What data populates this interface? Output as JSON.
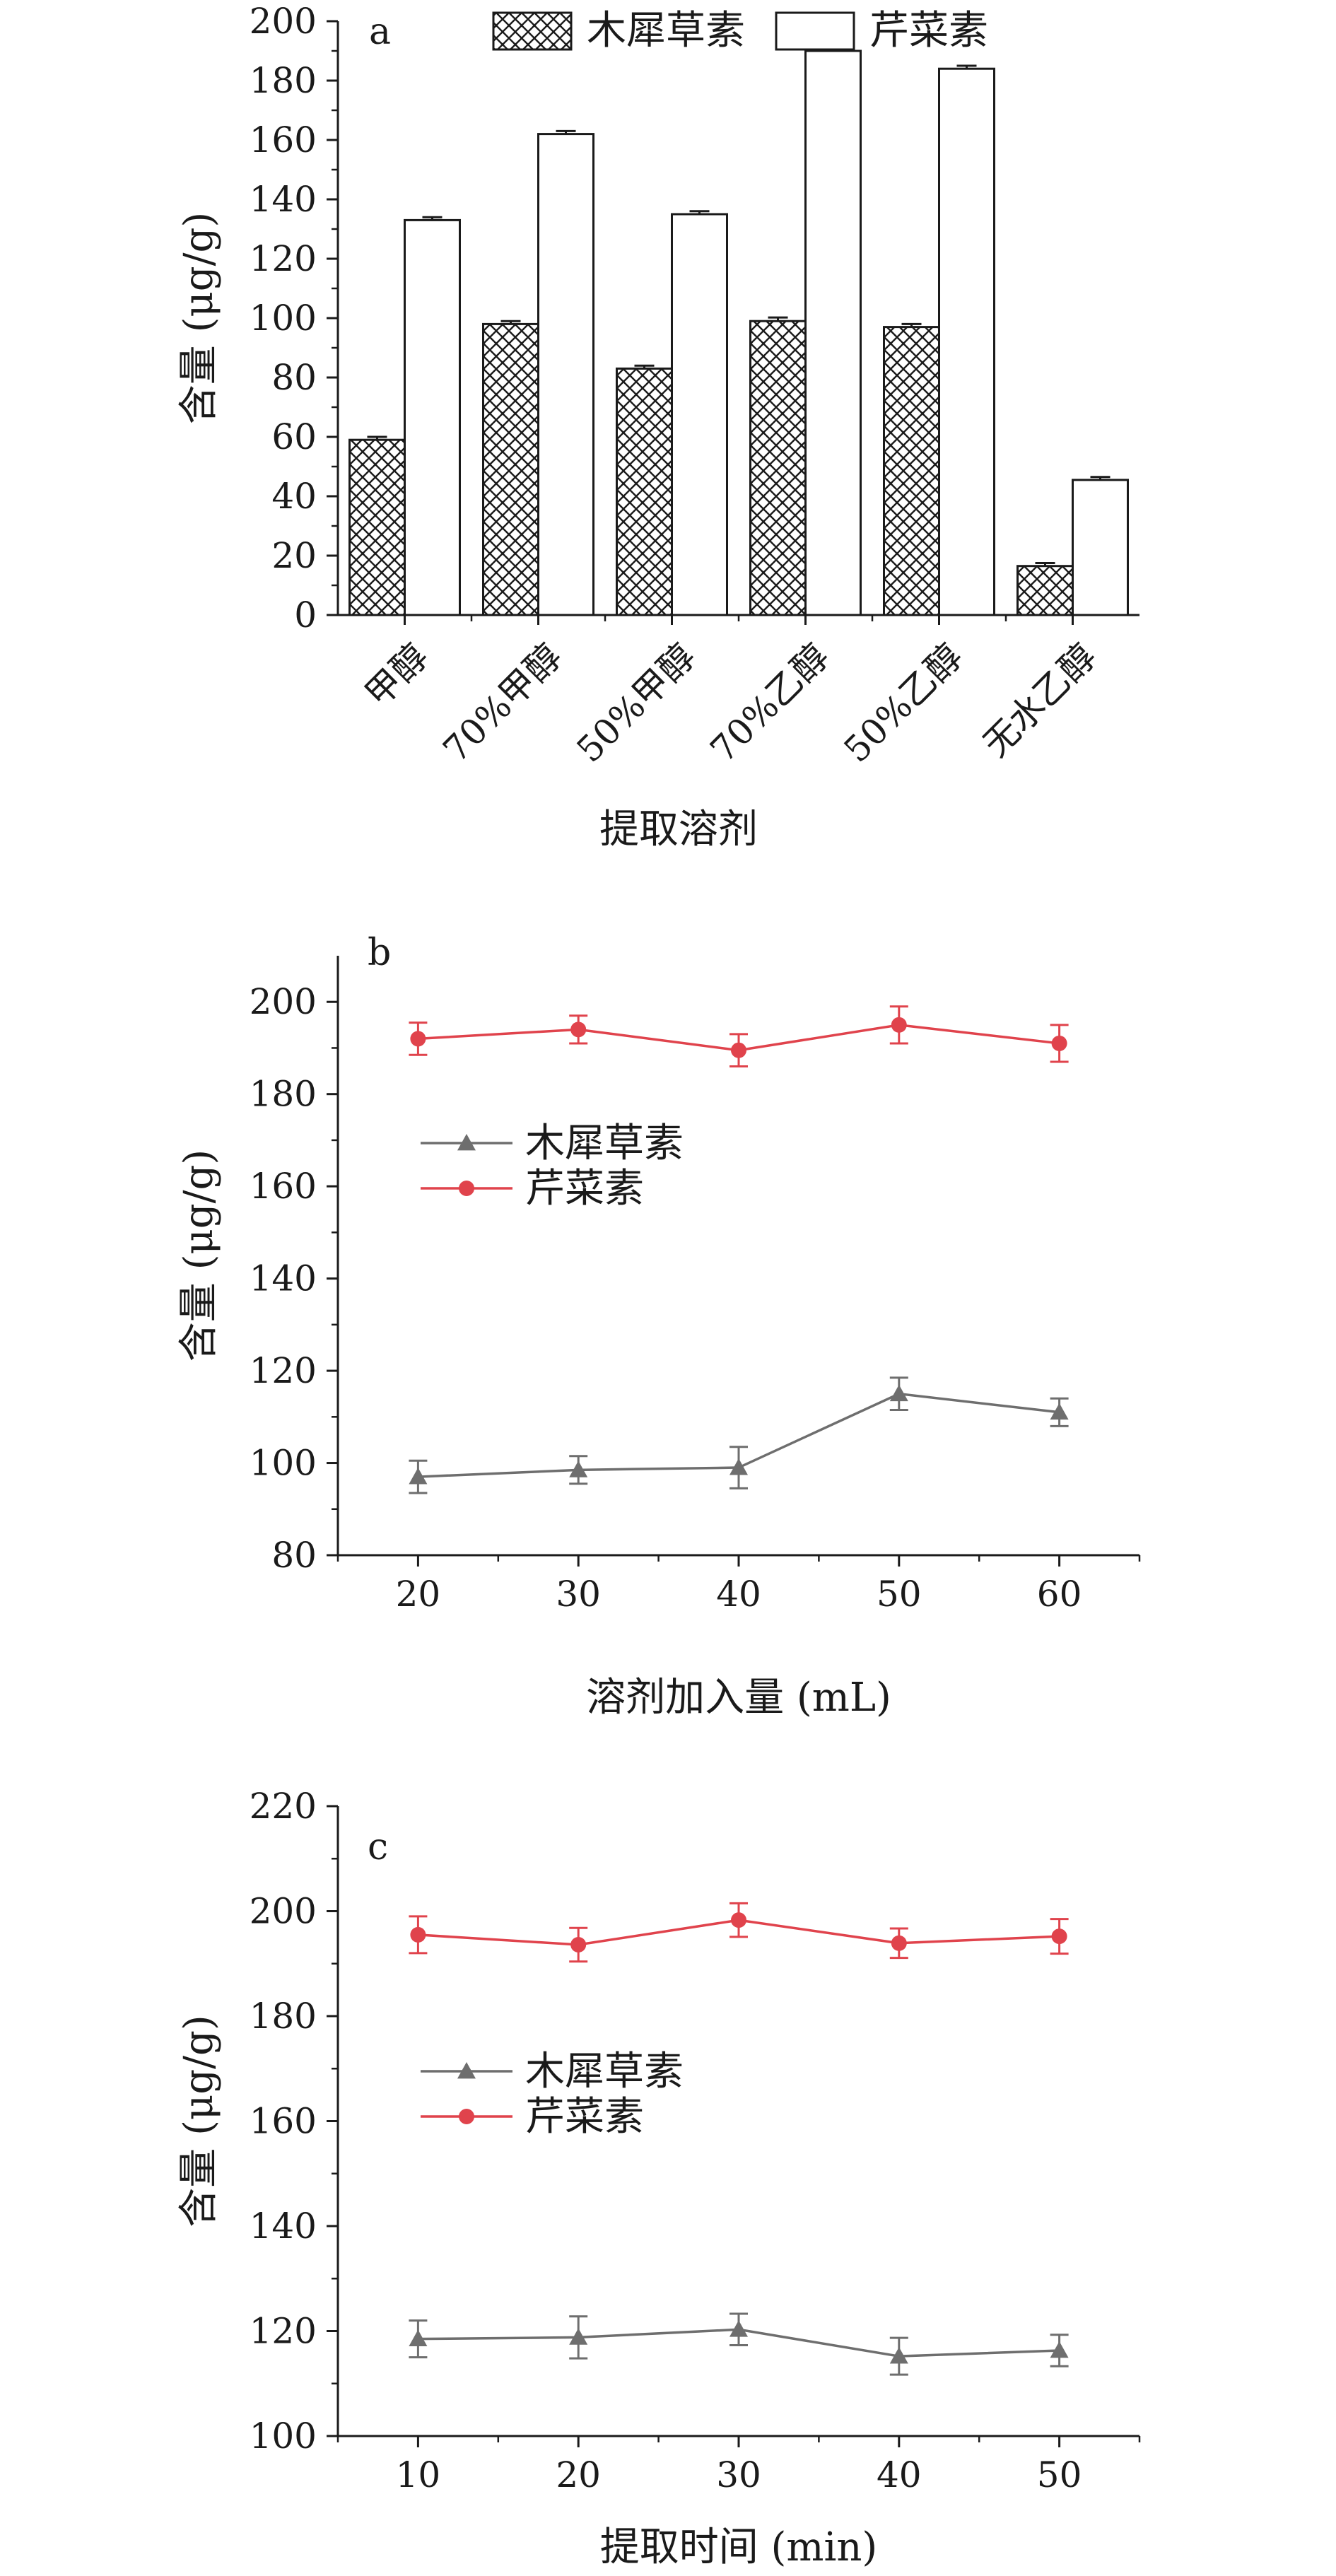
{
  "chart_data": [
    {
      "panel": "a",
      "type": "bar",
      "xlabel": "提取溶剂",
      "ylabel": "含量 (μg/g)",
      "ylim": [
        0,
        200
      ],
      "yticks": [
        0,
        20,
        40,
        60,
        80,
        100,
        120,
        140,
        160,
        180,
        200
      ],
      "categories": [
        "甲醇",
        "70%甲醇",
        "50%甲醇",
        "70%乙醇",
        "50%乙醇",
        "无水乙醇"
      ],
      "legend_placement": "top",
      "series": [
        {
          "name": "木犀草素",
          "pattern": "crosshatch",
          "color": "#1a1a1a",
          "values": [
            59,
            98,
            83,
            99,
            97,
            16.5
          ],
          "errors": [
            1,
            1,
            1,
            1.2,
            1,
            1
          ]
        },
        {
          "name": "芹菜素",
          "pattern": "none",
          "color": "#ffffff",
          "values": [
            133,
            162,
            135,
            190,
            184,
            45.5
          ],
          "errors": [
            1,
            1,
            1,
            1,
            1,
            1
          ]
        }
      ]
    },
    {
      "panel": "b",
      "type": "line",
      "xlabel": "溶剂加入量 (mL)",
      "ylabel": "含量 (μg/g)",
      "xlim": [
        15,
        65
      ],
      "ylim": [
        80,
        210
      ],
      "xticks": [
        20,
        30,
        40,
        50,
        60
      ],
      "yticks": [
        80,
        100,
        120,
        140,
        160,
        180,
        200
      ],
      "x": [
        20,
        30,
        40,
        50,
        60
      ],
      "legend_placement": "left",
      "series": [
        {
          "name": "木犀草素",
          "marker": "triangle",
          "color": "#6e6e6e",
          "values": [
            97,
            98.5,
            99,
            115,
            111
          ],
          "errors": [
            3.5,
            3,
            4.5,
            3.5,
            3
          ]
        },
        {
          "name": "芹菜素",
          "marker": "circle",
          "color": "#e0434c",
          "values": [
            192,
            194,
            189.5,
            195,
            191
          ],
          "errors": [
            3.5,
            3,
            3.5,
            4,
            4
          ]
        }
      ]
    },
    {
      "panel": "c",
      "type": "line",
      "xlabel": "提取时间 (min)",
      "ylabel": "含量 (μg/g)",
      "xlim": [
        5,
        55
      ],
      "ylim": [
        100,
        220
      ],
      "xticks": [
        10,
        20,
        30,
        40,
        50
      ],
      "yticks": [
        100,
        120,
        140,
        160,
        180,
        200,
        220
      ],
      "x": [
        10,
        20,
        30,
        40,
        50
      ],
      "legend_placement": "left",
      "series": [
        {
          "name": "木犀草素",
          "marker": "triangle",
          "color": "#6e6e6e",
          "values": [
            118.5,
            118.8,
            120.3,
            115.2,
            116.3
          ],
          "errors": [
            3.5,
            4,
            3,
            3.5,
            3
          ]
        },
        {
          "name": "芹菜素",
          "marker": "circle",
          "color": "#e0434c",
          "values": [
            195.5,
            193.6,
            198.3,
            193.9,
            195.2
          ],
          "errors": [
            3.5,
            3.2,
            3.2,
            2.8,
            3.3
          ]
        }
      ]
    }
  ]
}
